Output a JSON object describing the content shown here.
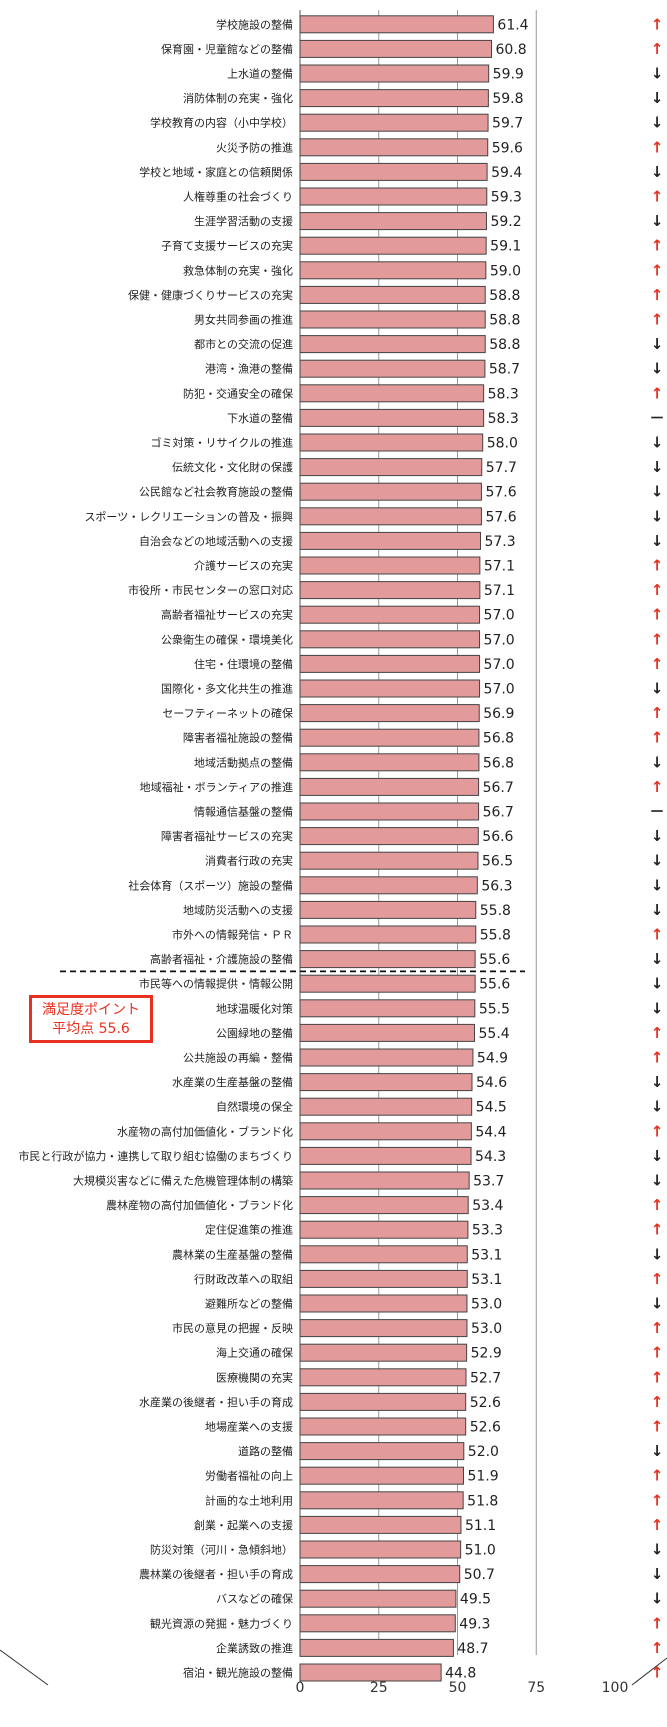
{
  "chart_data": {
    "type": "bar",
    "orientation": "horizontal",
    "title": "",
    "xlabel": "",
    "ylabel": "",
    "xlim": [
      0,
      100
    ],
    "x_ticks": [
      "0",
      "25",
      "50",
      "75",
      "100"
    ],
    "grid": true,
    "bar_color": "#e29a9a",
    "bar_border_color": "#444444",
    "average": {
      "value": 55.6,
      "line1": "満足度ポイント",
      "line2": "平均点 55.6"
    },
    "trend_colors": {
      "up": "#e83020",
      "down": "#222222",
      "same": "#222222"
    },
    "categories": [
      "学校施設の整備",
      "保育園・児童館などの整備",
      "上水道の整備",
      "消防体制の充実・強化",
      "学校教育の内容（小中学校）",
      "火災予防の推進",
      "学校と地域・家庭との信頼関係",
      "人権尊重の社会づくり",
      "生涯学習活動の支援",
      "子育て支援サービスの充実",
      "救急体制の充実・強化",
      "保健・健康づくりサービスの充実",
      "男女共同参画の推進",
      "都市との交流の促進",
      "港湾・漁港の整備",
      "防犯・交通安全の確保",
      "下水道の整備",
      "ゴミ対策・リサイクルの推進",
      "伝統文化・文化財の保護",
      "公民館など社会教育施設の整備",
      "スポーツ・レクリエーションの普及・振興",
      "自治会などの地域活動への支援",
      "介護サービスの充実",
      "市役所・市民センターの窓口対応",
      "高齢者福祉サービスの充実",
      "公衆衛生の確保・環境美化",
      "住宅・住環境の整備",
      "国際化・多文化共生の推進",
      "セーフティーネットの確保",
      "障害者福祉施設の整備",
      "地域活動拠点の整備",
      "地域福祉・ボランティアの推進",
      "情報通信基盤の整備",
      "障害者福祉サービスの充実",
      "消費者行政の充実",
      "社会体育（スポーツ）施設の整備",
      "地域防災活動への支援",
      "市外への情報発信・ＰＲ",
      "高齢者福祉・介護施設の整備",
      "市民等への情報提供・情報公開",
      "地球温暖化対策",
      "公園緑地の整備",
      "公共施設の再編・整備",
      "水産業の生産基盤の整備",
      "自然環境の保全",
      "水産物の高付加価値化・ブランド化",
      "市民と行政が協力・連携して取り組む協働のまちづくり",
      "大規模災害などに備えた危機管理体制の構築",
      "農林産物の高付加価値化・ブランド化",
      "定住促進策の推進",
      "農林業の生産基盤の整備",
      "行財政改革への取組",
      "避難所などの整備",
      "市民の意見の把握・反映",
      "海上交通の確保",
      "医療機関の充実",
      "水産業の後継者・担い手の育成",
      "地場産業への支援",
      "道路の整備",
      "労働者福祉の向上",
      "計画的な土地利用",
      "創業・起業への支援",
      "防災対策（河川・急傾斜地）",
      "農林業の後継者・担い手の育成",
      "バスなどの確保",
      "観光資源の発掘・魅力づくり",
      "企業誘致の推進",
      "宿泊・観光施設の整備"
    ],
    "values": [
      61.4,
      60.8,
      59.9,
      59.8,
      59.7,
      59.6,
      59.4,
      59.3,
      59.2,
      59.1,
      59.0,
      58.8,
      58.8,
      58.8,
      58.7,
      58.3,
      58.3,
      58.0,
      57.7,
      57.6,
      57.6,
      57.3,
      57.1,
      57.1,
      57.0,
      57.0,
      57.0,
      57.0,
      56.9,
      56.8,
      56.8,
      56.7,
      56.7,
      56.6,
      56.5,
      56.3,
      55.8,
      55.8,
      55.6,
      55.6,
      55.5,
      55.4,
      54.9,
      54.6,
      54.5,
      54.4,
      54.3,
      53.7,
      53.4,
      53.3,
      53.1,
      53.1,
      53.0,
      53.0,
      52.9,
      52.7,
      52.6,
      52.6,
      52.0,
      51.9,
      51.8,
      51.1,
      51.0,
      50.7,
      49.5,
      49.3,
      48.7,
      44.8
    ],
    "value_labels": [
      "61.4",
      "60.8",
      "59.9",
      "59.8",
      "59.7",
      "59.6",
      "59.4",
      "59.3",
      "59.2",
      "59.1",
      "59.0",
      "58.8",
      "58.8",
      "58.8",
      "58.7",
      "58.3",
      "58.3",
      "58.0",
      "57.7",
      "57.6",
      "57.6",
      "57.3",
      "57.1",
      "57.1",
      "57.0",
      "57.0",
      "57.0",
      "57.0",
      "56.9",
      "56.8",
      "56.8",
      "56.7",
      "56.7",
      "56.6",
      "56.5",
      "56.3",
      "55.8",
      "55.8",
      "55.6",
      "55.6",
      "55.5",
      "55.4",
      "54.9",
      "54.6",
      "54.5",
      "54.4",
      "54.3",
      "53.7",
      "53.4",
      "53.3",
      "53.1",
      "53.1",
      "53.0",
      "53.0",
      "52.9",
      "52.7",
      "52.6",
      "52.6",
      "52.0",
      "51.9",
      "51.8",
      "51.1",
      "51.0",
      "50.7",
      "49.5",
      "49.3",
      "48.7",
      "44.8"
    ],
    "trends": [
      "up",
      "up",
      "down",
      "down",
      "down",
      "up",
      "down",
      "up",
      "down",
      "up",
      "up",
      "up",
      "up",
      "down",
      "down",
      "up",
      "same",
      "down",
      "down",
      "down",
      "down",
      "down",
      "up",
      "up",
      "up",
      "up",
      "up",
      "down",
      "up",
      "up",
      "down",
      "up",
      "same",
      "down",
      "down",
      "down",
      "down",
      "up",
      "down",
      "down",
      "down",
      "up",
      "up",
      "down",
      "down",
      "up",
      "down",
      "down",
      "up",
      "up",
      "down",
      "up",
      "down",
      "up",
      "up",
      "up",
      "up",
      "up",
      "down",
      "up",
      "up",
      "up",
      "down",
      "down",
      "down",
      "up",
      "up",
      "up"
    ],
    "trend_symbols": {
      "up": "↑",
      "down": "↓",
      "same": "－"
    }
  }
}
